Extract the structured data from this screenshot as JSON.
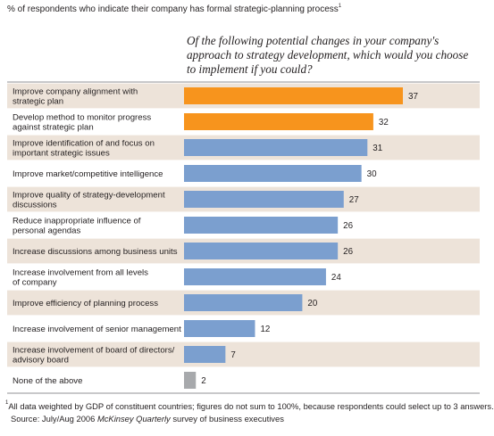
{
  "header": {
    "subtitle": "% of respondents who indicate their company has formal strategic-planning process",
    "subtitle_footnote_mark": "1",
    "question": "Of the following potential changes in your company's approach to strategy development, which would you choose to implement if you could?"
  },
  "chart_data": {
    "type": "bar",
    "orientation": "horizontal",
    "categories": [
      [
        "Improve company alignment with",
        "strategic plan"
      ],
      [
        "Develop method to monitor progress",
        "against strategic plan"
      ],
      [
        "Improve identification of and focus on",
        "important strategic issues"
      ],
      [
        "Improve market/competitive intelligence"
      ],
      [
        "Improve quality of strategy-development",
        "discussions"
      ],
      [
        "Reduce inappropriate influence of",
        "personal agendas"
      ],
      [
        "Increase discussions among business units"
      ],
      [
        "Increase involvement from all levels",
        "of company"
      ],
      [
        "Improve efficiency of planning process"
      ],
      [
        "Increase involvement of senior management"
      ],
      [
        "Increase involvement of board of directors/",
        "advisory board"
      ],
      [
        "None of the above"
      ]
    ],
    "values": [
      37,
      32,
      31,
      30,
      27,
      26,
      26,
      24,
      20,
      12,
      7,
      2
    ],
    "bar_colors": [
      "#f7941d",
      "#f7941d",
      "#7b9fcf",
      "#7b9fcf",
      "#7b9fcf",
      "#7b9fcf",
      "#7b9fcf",
      "#7b9fcf",
      "#7b9fcf",
      "#7b9fcf",
      "#7b9fcf",
      "#a7a9ac"
    ],
    "row_shading": [
      "#ede3d9",
      "#ffffff"
    ],
    "xlim": [
      0,
      40
    ],
    "grid": false,
    "legend": "none",
    "title": "",
    "xlabel": "",
    "ylabel": ""
  },
  "footnotes": {
    "mark": "1",
    "note": "All data weighted by GDP of constituent countries; figures do not sum to 100%, because respondents could select up to 3 answers.",
    "source_prefix": "Source: July/Aug 2006 ",
    "source_italic": "McKinsey Quarterly",
    "source_suffix": " survey of business executives"
  }
}
